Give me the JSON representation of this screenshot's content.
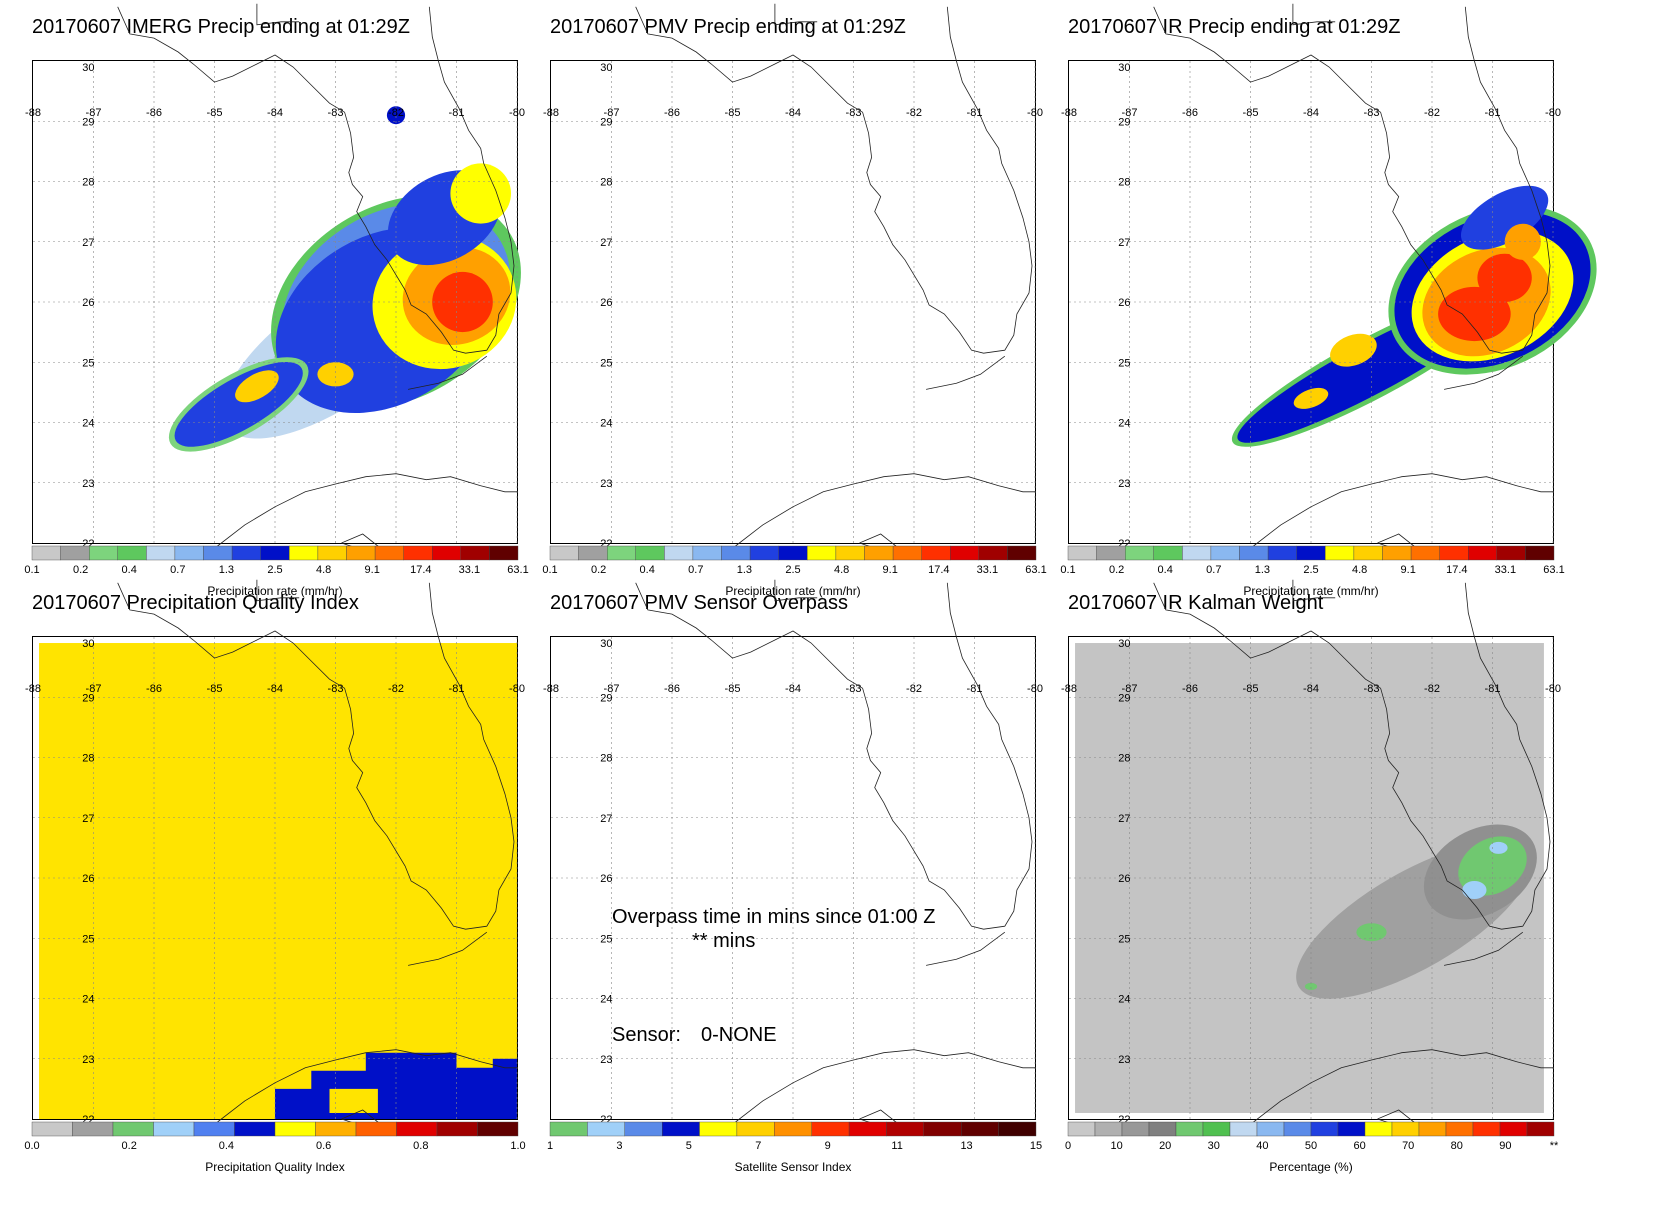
{
  "panels": [
    {
      "title": "20170607 IMERG Precip ending at 01:29Z",
      "type": "precip",
      "colorbar": {
        "title": "Precipitation rate (mm/hr)",
        "ticks": [
          "0.1",
          "0.2",
          "0.4",
          "0.7",
          "1.3",
          "2.5",
          "4.8",
          "9.1",
          "17.4",
          "33.1",
          "63.1"
        ]
      }
    },
    {
      "title": "20170607 PMV Precip ending at 01:29Z",
      "type": "empty",
      "colorbar": {
        "title": "Precipitation rate (mm/hr)",
        "ticks": [
          "0.1",
          "0.2",
          "0.4",
          "0.7",
          "1.3",
          "2.5",
          "4.8",
          "9.1",
          "17.4",
          "33.1",
          "63.1"
        ]
      }
    },
    {
      "title": "20170607 IR Precip ending at 01:29Z",
      "type": "ir",
      "colorbar": {
        "title": "Precipitation rate (mm/hr)",
        "ticks": [
          "0.1",
          "0.2",
          "0.4",
          "0.7",
          "1.3",
          "2.5",
          "4.8",
          "9.1",
          "17.4",
          "33.1",
          "63.1"
        ]
      }
    },
    {
      "title": "20170607 Precipitation Quality Index",
      "type": "quality",
      "colorbar": {
        "title": "Precipitation Quality Index",
        "ticks": [
          "0.0",
          "0.2",
          "0.4",
          "0.6",
          "0.8",
          "1.0"
        ]
      }
    },
    {
      "title": "20170607 PMV Sensor Overpass",
      "type": "overpass",
      "overpass_text": "Overpass time in mins since 01:00 Z",
      "overpass_value": "** mins",
      "sensor_label": "Sensor:",
      "sensor_value": "0-NONE",
      "colorbar": {
        "title": "Satellite Sensor Index",
        "ticks": [
          "1",
          "3",
          "5",
          "7",
          "9",
          "11",
          "13",
          "15"
        ]
      }
    },
    {
      "title": "20170607 IR Kalman Weight",
      "type": "kalman",
      "colorbar": {
        "title": "Percentage (%)",
        "ticks": [
          "0",
          "10",
          "20",
          "30",
          "40",
          "50",
          "60",
          "70",
          "80",
          "90",
          "**"
        ]
      }
    }
  ],
  "axes": {
    "lon_labels": [
      "-88",
      "-87",
      "-86",
      "-85",
      "-84",
      "-83",
      "-82",
      "-81",
      "-80"
    ],
    "lat_labels": [
      "30",
      "29",
      "28",
      "27",
      "26",
      "25",
      "24",
      "23",
      "22"
    ]
  },
  "colors": {
    "precip_scale": [
      "#c8c8c8",
      "#a0a0a0",
      "#7dd47d",
      "#5ec85e",
      "#c0d8f0",
      "#8ab8f0",
      "#5a8ae8",
      "#2040e0",
      "#0010c8",
      "#ffff00",
      "#ffd000",
      "#ffa000",
      "#ff7000",
      "#ff3000",
      "#e00000",
      "#a00000",
      "#600000"
    ],
    "quality_scale": [
      "#c8c8c8",
      "#a0a0a0",
      "#70c870",
      "#a0d0f8",
      "#5080f0",
      "#0010c8",
      "#ffff00",
      "#ffb000",
      "#ff6000",
      "#e00000",
      "#a00000",
      "#600000"
    ],
    "sensor_scale": [
      "#70c870",
      "#a0d0f8",
      "#5a8ae8",
      "#0010c8",
      "#ffff00",
      "#ffd000",
      "#ff9000",
      "#ff3000",
      "#e00000",
      "#b00000",
      "#800000",
      "#600000",
      "#400000"
    ],
    "kalman_scale": [
      "#c8c8c8",
      "#b0b0b0",
      "#989898",
      "#808080",
      "#70c870",
      "#50c050",
      "#c0d8f0",
      "#8ab8f0",
      "#5a8ae8",
      "#2040e0",
      "#0010c8",
      "#ffff00",
      "#ffd000",
      "#ffa000",
      "#ff7000",
      "#ff3000",
      "#e00000",
      "#a00000"
    ]
  }
}
